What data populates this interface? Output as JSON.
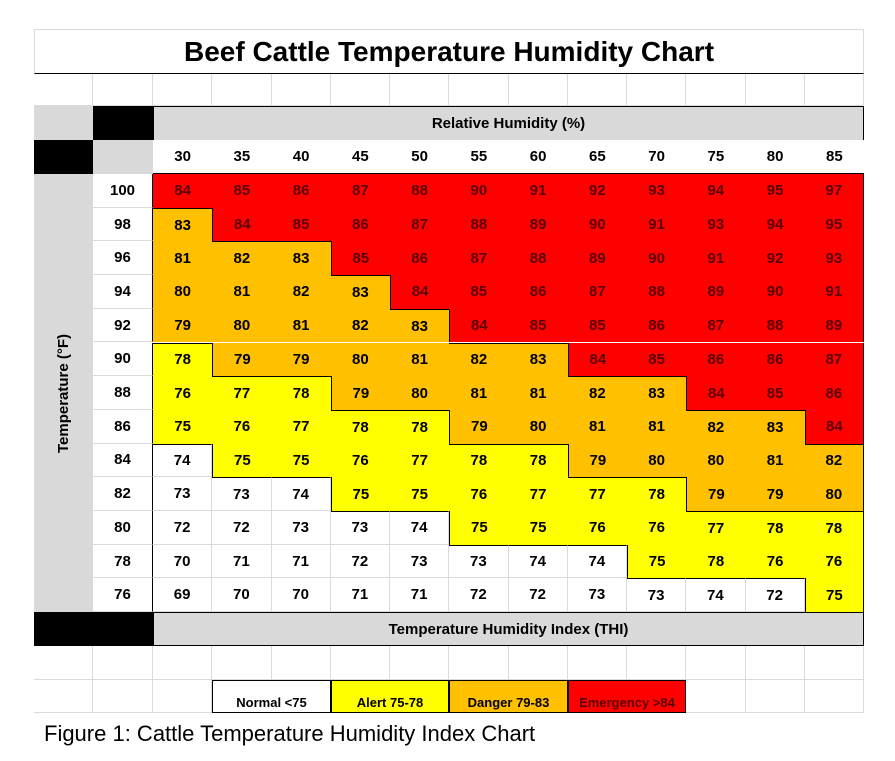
{
  "chart_data": {
    "type": "heatmap",
    "title": "Beef Cattle Temperature Humidity Chart",
    "xlabel": "Relative Humidity (%)",
    "ylabel": "Temperature (°F)",
    "footer_label": "Temperature Humidity Index (THI)",
    "x": [
      30,
      35,
      40,
      45,
      50,
      55,
      60,
      65,
      70,
      75,
      80,
      85
    ],
    "y": [
      100,
      98,
      96,
      94,
      92,
      90,
      88,
      86,
      84,
      82,
      80,
      78,
      76
    ],
    "values": [
      [
        84,
        85,
        86,
        87,
        88,
        90,
        91,
        92,
        93,
        94,
        95,
        97
      ],
      [
        83,
        84,
        85,
        86,
        87,
        88,
        89,
        90,
        91,
        93,
        94,
        95
      ],
      [
        81,
        82,
        83,
        85,
        86,
        87,
        88,
        89,
        90,
        91,
        92,
        93
      ],
      [
        80,
        81,
        82,
        83,
        84,
        85,
        86,
        87,
        88,
        89,
        90,
        91
      ],
      [
        79,
        80,
        81,
        82,
        83,
        84,
        85,
        85,
        86,
        87,
        88,
        89
      ],
      [
        78,
        79,
        79,
        80,
        81,
        82,
        83,
        84,
        85,
        86,
        86,
        87
      ],
      [
        76,
        77,
        78,
        79,
        80,
        81,
        81,
        82,
        83,
        84,
        85,
        86
      ],
      [
        75,
        76,
        77,
        78,
        78,
        79,
        80,
        81,
        81,
        82,
        83,
        84
      ],
      [
        74,
        75,
        75,
        76,
        77,
        78,
        78,
        79,
        80,
        80,
        81,
        82
      ],
      [
        73,
        73,
        74,
        75,
        75,
        76,
        77,
        77,
        78,
        79,
        79,
        80
      ],
      [
        72,
        72,
        73,
        73,
        74,
        75,
        75,
        76,
        76,
        77,
        78,
        78
      ],
      [
        70,
        71,
        71,
        72,
        73,
        73,
        74,
        74,
        75,
        78,
        76,
        76
      ],
      [
        69,
        70,
        70,
        71,
        71,
        72,
        72,
        73,
        73,
        74,
        72,
        75
      ]
    ],
    "legend": [
      {
        "label": "Normal <75",
        "min": 0,
        "max": 74,
        "color": "#ffffff"
      },
      {
        "label": "Alert 75-78",
        "min": 75,
        "max": 78,
        "color": "#ffff00"
      },
      {
        "label": "Danger 79-83",
        "min": 79,
        "max": 83,
        "color": "#ffc000"
      },
      {
        "label": "Emergency >84",
        "min": 84,
        "max": 999,
        "color": "#ff0000"
      }
    ],
    "legend_placement": "bottom"
  },
  "caption": "Figure 1: Cattle Temperature Humidity Index Chart"
}
